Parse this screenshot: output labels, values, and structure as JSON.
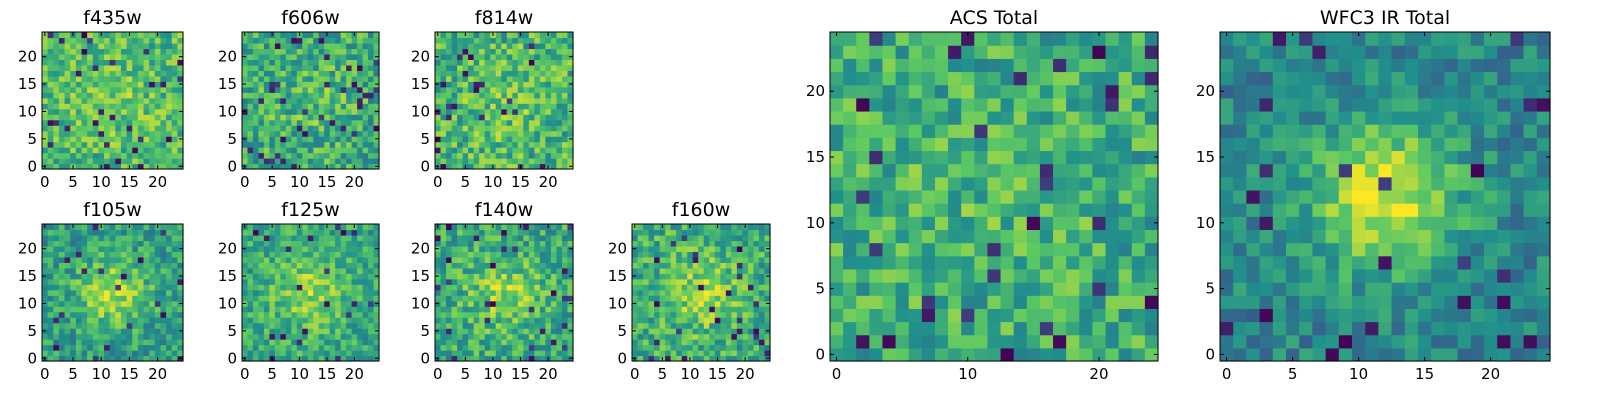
{
  "colormap": {
    "name": "viridis",
    "stops": [
      "#440154",
      "#3b528b",
      "#21918c",
      "#5ec962",
      "#fde725"
    ]
  },
  "chart_data": [
    {
      "type": "heatmap",
      "title": "f435w",
      "grid_size": 25,
      "xlim": [
        0,
        24
      ],
      "ylim": [
        0,
        24
      ],
      "x_ticks": [
        0,
        5,
        10,
        15,
        20
      ],
      "y_ticks": [
        0,
        5,
        10,
        15,
        20
      ],
      "seed": 11,
      "base": 0.68,
      "noise": 0.2,
      "peak": 0.08,
      "sigma": 5,
      "dark_fraction": 0.045
    },
    {
      "type": "heatmap",
      "title": "f606w",
      "grid_size": 25,
      "xlim": [
        0,
        24
      ],
      "ylim": [
        0,
        24
      ],
      "x_ticks": [
        0,
        5,
        10,
        15,
        20
      ],
      "y_ticks": [
        0,
        5,
        10,
        15,
        20
      ],
      "seed": 23,
      "base": 0.62,
      "noise": 0.22,
      "peak": 0.08,
      "sigma": 5,
      "dark_fraction": 0.05
    },
    {
      "type": "heatmap",
      "title": "f814w",
      "grid_size": 25,
      "xlim": [
        0,
        24
      ],
      "ylim": [
        0,
        24
      ],
      "x_ticks": [
        0,
        5,
        10,
        15,
        20
      ],
      "y_ticks": [
        0,
        5,
        10,
        15,
        20
      ],
      "seed": 37,
      "base": 0.66,
      "noise": 0.22,
      "peak": 0.08,
      "sigma": 5,
      "dark_fraction": 0.045
    },
    {
      "type": "heatmap",
      "title": "f105w",
      "grid_size": 25,
      "xlim": [
        0,
        24
      ],
      "ylim": [
        0,
        24
      ],
      "x_ticks": [
        0,
        5,
        10,
        15,
        20
      ],
      "y_ticks": [
        0,
        5,
        10,
        15,
        20
      ],
      "seed": 41,
      "base": 0.55,
      "noise": 0.18,
      "peak": 0.32,
      "sigma": 4.5,
      "dark_fraction": 0.04
    },
    {
      "type": "heatmap",
      "title": "f125w",
      "grid_size": 25,
      "xlim": [
        0,
        24
      ],
      "ylim": [
        0,
        24
      ],
      "x_ticks": [
        0,
        5,
        10,
        15,
        20
      ],
      "y_ticks": [
        0,
        5,
        10,
        15,
        20
      ],
      "seed": 53,
      "base": 0.6,
      "noise": 0.18,
      "peak": 0.22,
      "sigma": 5,
      "dark_fraction": 0.035
    },
    {
      "type": "heatmap",
      "title": "f140w",
      "grid_size": 25,
      "xlim": [
        0,
        24
      ],
      "ylim": [
        0,
        24
      ],
      "x_ticks": [
        0,
        5,
        10,
        15,
        20
      ],
      "y_ticks": [
        0,
        5,
        10,
        15,
        20
      ],
      "seed": 67,
      "base": 0.6,
      "noise": 0.2,
      "peak": 0.22,
      "sigma": 5,
      "dark_fraction": 0.04
    },
    {
      "type": "heatmap",
      "title": "f160w",
      "grid_size": 25,
      "xlim": [
        0,
        24
      ],
      "ylim": [
        0,
        24
      ],
      "x_ticks": [
        0,
        5,
        10,
        15,
        20
      ],
      "y_ticks": [
        0,
        5,
        10,
        15,
        20
      ],
      "seed": 79,
      "base": 0.62,
      "noise": 0.2,
      "peak": 0.2,
      "sigma": 5,
      "dark_fraction": 0.045
    },
    {
      "type": "heatmap",
      "title": "ACS Total",
      "grid_size": 25,
      "xlim": [
        0,
        24
      ],
      "ylim": [
        0,
        24
      ],
      "x_ticks": [
        0,
        10,
        20
      ],
      "y_ticks": [
        0,
        5,
        10,
        15,
        20
      ],
      "seed": 97,
      "base": 0.62,
      "noise": 0.2,
      "peak": 0.06,
      "sigma": 5,
      "dark_fraction": 0.05
    },
    {
      "type": "heatmap",
      "title": "WFC3 IR Total",
      "grid_size": 25,
      "xlim": [
        0,
        24
      ],
      "ylim": [
        0,
        24
      ],
      "x_ticks": [
        0,
        5,
        10,
        15,
        20
      ],
      "y_ticks": [
        0,
        5,
        10,
        15,
        20
      ],
      "seed": 113,
      "base": 0.45,
      "noise": 0.15,
      "peak": 0.5,
      "sigma": 4,
      "dark_fraction": 0.045
    }
  ]
}
